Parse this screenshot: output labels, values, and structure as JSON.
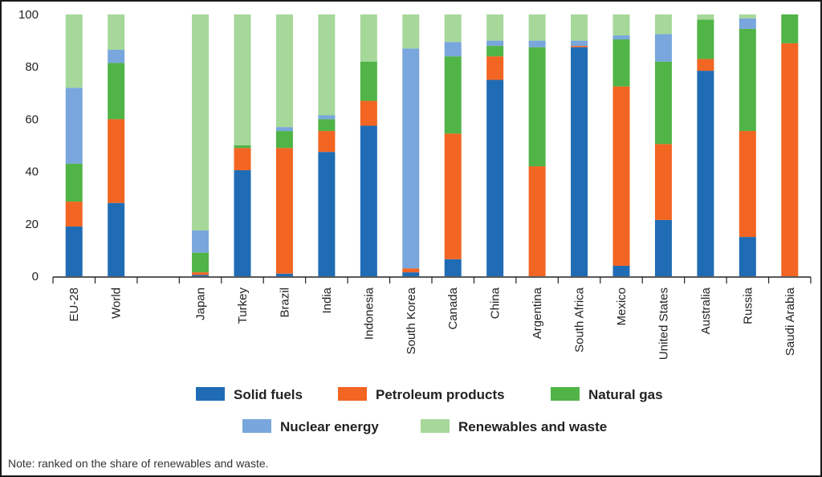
{
  "chart_data": {
    "type": "stacked-bar",
    "ylim": [
      0,
      100
    ],
    "yticks": [
      0,
      20,
      40,
      60,
      80,
      100
    ],
    "categories": [
      "EU-28",
      "World",
      "",
      "Japan",
      "Turkey",
      "Brazil",
      "India",
      "Indonesia",
      "South Korea",
      "Canada",
      "China",
      "Argentina",
      "South Africa",
      "Mexico",
      "United States",
      "Australia",
      "Russia",
      "Saudi Arabia"
    ],
    "series": [
      {
        "name": "Solid fuels",
        "color": "#1f6cb5",
        "values": [
          19,
          28,
          null,
          0.5,
          40.5,
          1,
          47.5,
          57.5,
          1.5,
          6.5,
          75,
          0,
          87.5,
          4,
          21.5,
          78.5,
          15,
          0
        ]
      },
      {
        "name": "Petroleum products",
        "color": "#f26522",
        "values": [
          9.5,
          32,
          null,
          1,
          8.5,
          48,
          8,
          9.5,
          1.5,
          48,
          9,
          42,
          0.5,
          68.5,
          29,
          4.5,
          40.5,
          89
        ]
      },
      {
        "name": "Natural gas",
        "color": "#50b447",
        "values": [
          14.5,
          21.5,
          null,
          7.5,
          1,
          6.5,
          4.5,
          15,
          0,
          29.5,
          4,
          45.5,
          0,
          18,
          31.5,
          15,
          39,
          11
        ]
      },
      {
        "name": "Nuclear energy",
        "color": "#79a6dc",
        "values": [
          29,
          5,
          null,
          8.5,
          0,
          1.5,
          1.5,
          0,
          84,
          5.5,
          2,
          2.5,
          2,
          1.5,
          10.5,
          0,
          4,
          0
        ]
      },
      {
        "name": "Renewables and waste",
        "color": "#a6d89a",
        "values": [
          28,
          13.5,
          null,
          82.5,
          50,
          43,
          38.5,
          18,
          13,
          10.5,
          10,
          10,
          10,
          8,
          7.5,
          2,
          1.5,
          0
        ]
      }
    ]
  },
  "note": "Note: ranked on the share of renewables and waste."
}
